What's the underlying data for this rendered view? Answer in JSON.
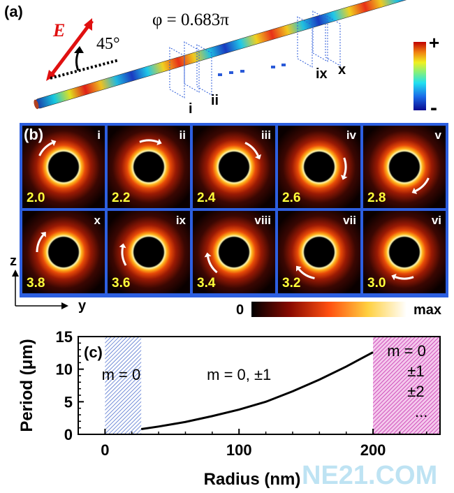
{
  "panel_a": {
    "label": "(a)",
    "field_symbol": "E",
    "angle": "45°",
    "phase": "φ = 0.683π",
    "cut_labels": [
      "i",
      "ii",
      "ix",
      "x"
    ],
    "dots": "...",
    "colorbar_plus": "+",
    "colorbar_minus": "-"
  },
  "panel_b": {
    "label": "(b)",
    "rows": [
      [
        {
          "roman": "i",
          "value": "2.0",
          "arrow_angle": 225
        },
        {
          "roman": "ii",
          "value": "2.2",
          "arrow_angle": 270
        },
        {
          "roman": "iii",
          "value": "2.4",
          "arrow_angle": 315
        },
        {
          "roman": "iv",
          "value": "2.6",
          "arrow_angle": 0
        },
        {
          "roman": "v",
          "value": "2.8",
          "arrow_angle": 45
        }
      ],
      [
        {
          "roman": "x",
          "value": "3.8",
          "arrow_angle": 200
        },
        {
          "roman": "ix",
          "value": "3.6",
          "arrow_angle": 170
        },
        {
          "roman": "viii",
          "value": "3.4",
          "arrow_angle": 150
        },
        {
          "roman": "vii",
          "value": "3.2",
          "arrow_angle": 120
        },
        {
          "roman": "vi",
          "value": "3.0",
          "arrow_angle": 90
        }
      ]
    ],
    "axis_z": "z",
    "axis_y": "y",
    "colorbar_min": "0",
    "colorbar_max": "max"
  },
  "chart_data": {
    "type": "line",
    "panel_label": "(c)",
    "xlabel": "Radius (nm)",
    "ylabel": "Period (μm)",
    "xlim": [
      -20,
      250
    ],
    "ylim": [
      0,
      15
    ],
    "xticks": [
      0,
      100,
      200
    ],
    "yticks": [
      0,
      5,
      10,
      15
    ],
    "series": [
      {
        "name": "Period",
        "x": [
          27,
          40,
          60,
          80,
          100,
          120,
          140,
          160,
          180,
          200
        ],
        "y": [
          0.8,
          1.2,
          1.9,
          2.8,
          3.8,
          5.0,
          6.6,
          8.4,
          10.4,
          12.6
        ]
      }
    ],
    "regions": [
      {
        "from": 0,
        "to": 27,
        "label": "m = 0",
        "color": "#3a5fc8"
      },
      {
        "from": 200,
        "to": 250,
        "label_lines": [
          "m = 0",
          "±1",
          "±2",
          "..."
        ],
        "color": "#c020a8"
      }
    ],
    "middle_label": "m = 0, ±1"
  },
  "watermark": "NE21.COM"
}
